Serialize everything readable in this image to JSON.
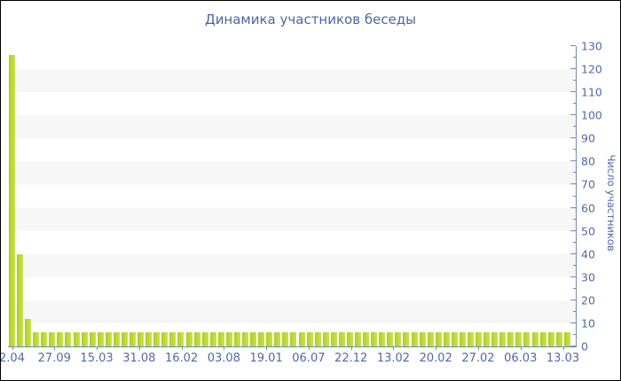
{
  "title": "Динамика участников беседы",
  "y_axis_title": "Число участников",
  "colors": {
    "bar_left": "#aecd2d",
    "bar_right": "#c9e446",
    "stripe_gray": "#f7f7f7",
    "stripe_white": "#ffffff",
    "axis_line": "#7289bd",
    "tick_text": "#4f69a8",
    "title_text": "#4a66a8"
  },
  "chart_data": {
    "type": "bar",
    "title": "Динамика участников беседы",
    "xlabel": "",
    "ylabel": "Число участников",
    "ylim": [
      0,
      130
    ],
    "y_major_tick_step": 10,
    "y_minor_tick_step": 5,
    "y_tick_labels": [
      "0",
      "10",
      "20",
      "30",
      "40",
      "50",
      "60",
      "70",
      "80",
      "90",
      "100",
      "110",
      "120",
      "130"
    ],
    "y_axis_side": "right",
    "grid": "alternating horizontal stripes every 10 units",
    "legend": "none",
    "x_tick_labels": [
      "2.04",
      "27.09",
      "15.03",
      "31.08",
      "16.02",
      "03.08",
      "19.01",
      "06.07",
      "22.12",
      "13.02",
      "20.02",
      "27.02",
      "06.03",
      "13.03"
    ],
    "values": [
      126,
      40,
      12,
      6,
      6,
      6,
      6,
      6,
      6,
      6,
      6,
      6,
      6,
      6,
      6,
      6,
      6,
      6,
      6,
      6,
      6,
      6,
      6,
      6,
      6,
      6,
      6,
      6,
      6,
      6,
      6,
      6,
      6,
      6,
      6,
      6,
      6,
      6,
      6,
      6,
      6,
      6,
      6,
      6,
      6,
      6,
      6,
      6,
      6,
      6,
      6,
      6,
      6,
      6,
      6,
      6,
      6,
      6,
      6,
      6,
      6,
      6,
      6,
      6,
      6,
      6,
      6,
      6,
      6,
      6
    ]
  }
}
